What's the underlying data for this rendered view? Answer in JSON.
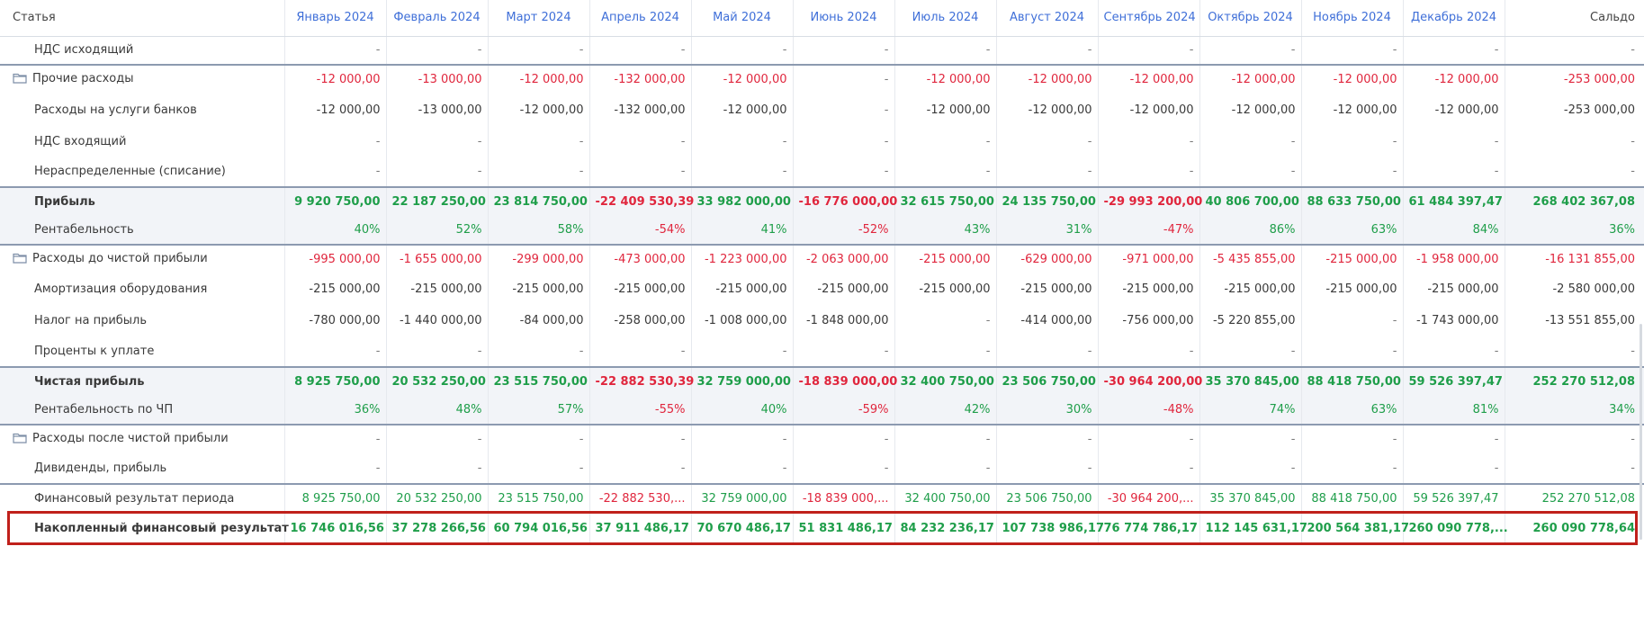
{
  "header": {
    "label": "Статья",
    "months": [
      "Январь 2024",
      "Февраль 2024",
      "Март 2024",
      "Апрель 2024",
      "Май 2024",
      "Июнь 2024",
      "Июль 2024",
      "Август 2024",
      "Сентябрь 2024",
      "Октябрь 2024",
      "Ноябрь 2024",
      "Декабрь 2024"
    ],
    "total": "Сальдо"
  },
  "rows": [
    {
      "label": "НДС исходящий",
      "values": [
        "-",
        "-",
        "-",
        "-",
        "-",
        "-",
        "-",
        "-",
        "-",
        "-",
        "-",
        "-",
        "-"
      ]
    },
    {
      "label": "Прочие расходы",
      "values": [
        "-12 000,00",
        "-13 000,00",
        "-12 000,00",
        "-132 000,00",
        "-12 000,00",
        "-",
        "-12 000,00",
        "-12 000,00",
        "-12 000,00",
        "-12 000,00",
        "-12 000,00",
        "-12 000,00",
        "-253 000,00"
      ]
    },
    {
      "label": "Расходы на услуги банков",
      "values": [
        "-12 000,00",
        "-13 000,00",
        "-12 000,00",
        "-132 000,00",
        "-12 000,00",
        "-",
        "-12 000,00",
        "-12 000,00",
        "-12 000,00",
        "-12 000,00",
        "-12 000,00",
        "-12 000,00",
        "-253 000,00"
      ]
    },
    {
      "label": "НДС входящий",
      "values": [
        "-",
        "-",
        "-",
        "-",
        "-",
        "-",
        "-",
        "-",
        "-",
        "-",
        "-",
        "-",
        "-"
      ]
    },
    {
      "label": "Нераспределенные (списание)",
      "values": [
        "-",
        "-",
        "-",
        "-",
        "-",
        "-",
        "-",
        "-",
        "-",
        "-",
        "-",
        "-",
        "-"
      ]
    },
    {
      "label": "Прибыль",
      "values": [
        "9 920 750,00",
        "22 187 250,00",
        "23 814 750,00",
        "-22 409 530,39",
        "33 982 000,00",
        "-16 776 000,00",
        "32 615 750,00",
        "24 135 750,00",
        "-29 993 200,00",
        "40 806 700,00",
        "88 633 750,00",
        "61 484 397,47",
        "268 402 367,08"
      ]
    },
    {
      "label": "Рентабельность",
      "values": [
        "40%",
        "52%",
        "58%",
        "-54%",
        "41%",
        "-52%",
        "43%",
        "31%",
        "-47%",
        "86%",
        "63%",
        "84%",
        "36%"
      ]
    },
    {
      "label": "Расходы до чистой прибыли",
      "values": [
        "-995 000,00",
        "-1 655 000,00",
        "-299 000,00",
        "-473 000,00",
        "-1 223 000,00",
        "-2 063 000,00",
        "-215 000,00",
        "-629 000,00",
        "-971 000,00",
        "-5 435 855,00",
        "-215 000,00",
        "-1 958 000,00",
        "-16 131 855,00"
      ]
    },
    {
      "label": "Амортизация оборудования",
      "values": [
        "-215 000,00",
        "-215 000,00",
        "-215 000,00",
        "-215 000,00",
        "-215 000,00",
        "-215 000,00",
        "-215 000,00",
        "-215 000,00",
        "-215 000,00",
        "-215 000,00",
        "-215 000,00",
        "-215 000,00",
        "-2 580 000,00"
      ]
    },
    {
      "label": "Налог на прибыль",
      "values": [
        "-780 000,00",
        "-1 440 000,00",
        "-84 000,00",
        "-258 000,00",
        "-1 008 000,00",
        "-1 848 000,00",
        "-",
        "-414 000,00",
        "-756 000,00",
        "-5 220 855,00",
        "-",
        "-1 743 000,00",
        "-13 551 855,00"
      ]
    },
    {
      "label": "Проценты к уплате",
      "values": [
        "-",
        "-",
        "-",
        "-",
        "-",
        "-",
        "-",
        "-",
        "-",
        "-",
        "-",
        "-",
        "-"
      ]
    },
    {
      "label": "Чистая прибыль",
      "values": [
        "8 925 750,00",
        "20 532 250,00",
        "23 515 750,00",
        "-22 882 530,39",
        "32 759 000,00",
        "-18 839 000,00",
        "32 400 750,00",
        "23 506 750,00",
        "-30 964 200,00",
        "35 370 845,00",
        "88 418 750,00",
        "59 526 397,47",
        "252 270 512,08"
      ]
    },
    {
      "label": "Рентабельность по ЧП",
      "values": [
        "36%",
        "48%",
        "57%",
        "-55%",
        "40%",
        "-59%",
        "42%",
        "30%",
        "-48%",
        "74%",
        "63%",
        "81%",
        "34%"
      ]
    },
    {
      "label": "Расходы после чистой прибыли",
      "values": [
        "-",
        "-",
        "-",
        "-",
        "-",
        "-",
        "-",
        "-",
        "-",
        "-",
        "-",
        "-",
        "-"
      ]
    },
    {
      "label": "Дивиденды, прибыль",
      "values": [
        "-",
        "-",
        "-",
        "-",
        "-",
        "-",
        "-",
        "-",
        "-",
        "-",
        "-",
        "-",
        "-"
      ]
    },
    {
      "label": "Финансовый результат периода",
      "values": [
        "8 925 750,00",
        "20 532 250,00",
        "23 515 750,00",
        "-22 882 530,...",
        "32 759 000,00",
        "-18 839 000,...",
        "32 400 750,00",
        "23 506 750,00",
        "-30 964 200,...",
        "35 370 845,00",
        "88 418 750,00",
        "59 526 397,47",
        "252 270 512,08"
      ]
    },
    {
      "label": "Накопленный финансовый результат",
      "values": [
        "16 746 016,56",
        "37 278 266,56",
        "60 794 016,56",
        "37 911 486,17",
        "70 670 486,17",
        "51 831 486,17",
        "84 232 236,17",
        "107 738 986,17",
        "76 774 786,17",
        "112 145 631,17",
        "200 564 381,17",
        "260 090 778,...",
        "260 090 778,64"
      ]
    }
  ],
  "colors": {
    "negative": "#e0263d",
    "positive": "#1f9e4a",
    "header_link": "#3f6fd8",
    "highlight": "#c0201b"
  }
}
